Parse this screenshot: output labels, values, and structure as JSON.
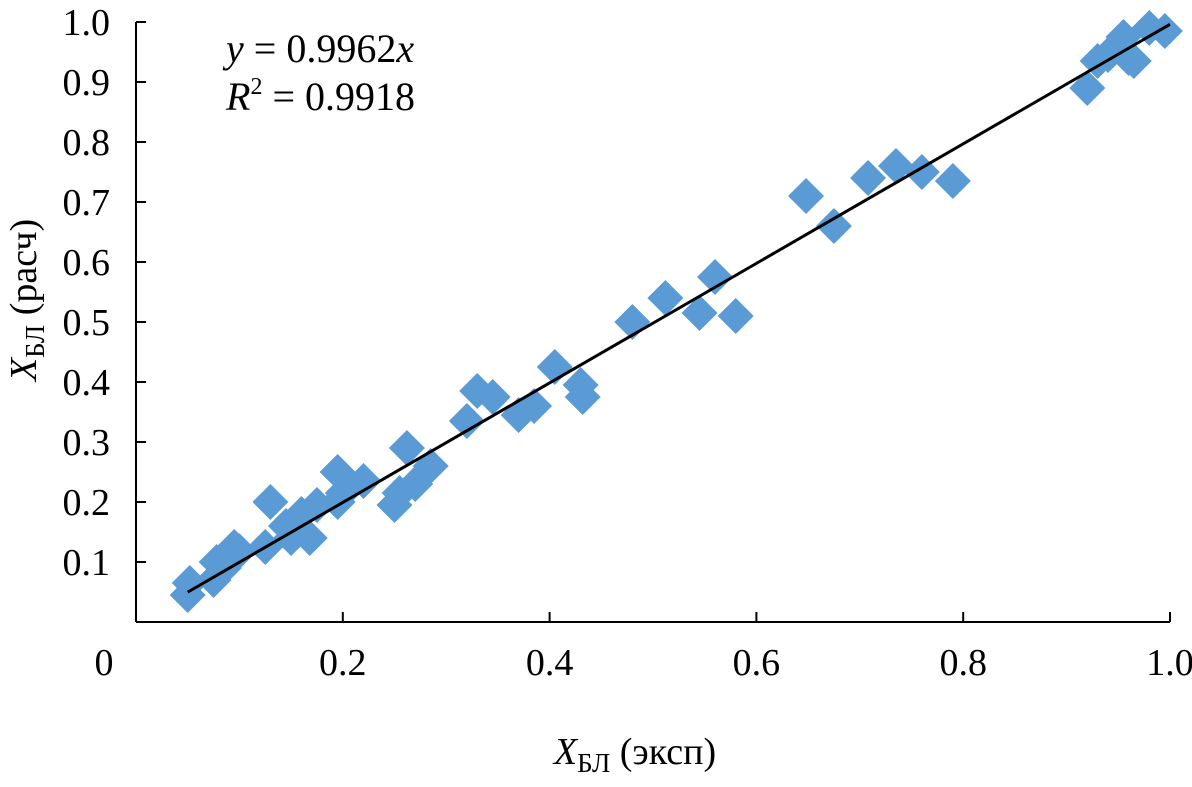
{
  "chart_data": {
    "type": "scatter",
    "title": "",
    "xlabel": {
      "var": "X",
      "sub": "БЛ",
      "rest": " (эксп)"
    },
    "ylabel": {
      "var": "X",
      "sub": "БЛ",
      "rest": " (расч)"
    },
    "xlim": [
      0,
      1.0
    ],
    "ylim": [
      0,
      1.0
    ],
    "x_ticks": [
      {
        "value": 0,
        "label": "0"
      },
      {
        "value": 0.2,
        "label": "0.2"
      },
      {
        "value": 0.4,
        "label": "0.4"
      },
      {
        "value": 0.6,
        "label": "0.6"
      },
      {
        "value": 0.8,
        "label": "0.8"
      },
      {
        "value": 1.0,
        "label": "1.0"
      }
    ],
    "y_ticks": [
      {
        "value": 0.1,
        "label": "0.1"
      },
      {
        "value": 0.2,
        "label": "0.2"
      },
      {
        "value": 0.3,
        "label": "0.3"
      },
      {
        "value": 0.4,
        "label": "0.4"
      },
      {
        "value": 0.5,
        "label": "0.5"
      },
      {
        "value": 0.6,
        "label": "0.6"
      },
      {
        "value": 0.7,
        "label": "0.7"
      },
      {
        "value": 0.8,
        "label": "0.8"
      },
      {
        "value": 0.9,
        "label": "0.9"
      },
      {
        "value": 1.0,
        "label": "1.0"
      }
    ],
    "grid": false,
    "marker_color": "#5B9BD5",
    "line_color": "#000000",
    "series": [
      {
        "name": "data",
        "points": [
          [
            0.05,
            0.045
          ],
          [
            0.052,
            0.065
          ],
          [
            0.075,
            0.07
          ],
          [
            0.078,
            0.1
          ],
          [
            0.085,
            0.09
          ],
          [
            0.095,
            0.125
          ],
          [
            0.1,
            0.118
          ],
          [
            0.125,
            0.125
          ],
          [
            0.13,
            0.2
          ],
          [
            0.145,
            0.16
          ],
          [
            0.15,
            0.14
          ],
          [
            0.16,
            0.18
          ],
          [
            0.168,
            0.14
          ],
          [
            0.175,
            0.195
          ],
          [
            0.195,
            0.25
          ],
          [
            0.195,
            0.2
          ],
          [
            0.2,
            0.215
          ],
          [
            0.22,
            0.235
          ],
          [
            0.25,
            0.195
          ],
          [
            0.255,
            0.215
          ],
          [
            0.262,
            0.29
          ],
          [
            0.27,
            0.23
          ],
          [
            0.285,
            0.26
          ],
          [
            0.32,
            0.335
          ],
          [
            0.33,
            0.385
          ],
          [
            0.345,
            0.375
          ],
          [
            0.37,
            0.345
          ],
          [
            0.385,
            0.36
          ],
          [
            0.405,
            0.425
          ],
          [
            0.43,
            0.395
          ],
          [
            0.432,
            0.375
          ],
          [
            0.48,
            0.5
          ],
          [
            0.512,
            0.54
          ],
          [
            0.545,
            0.515
          ],
          [
            0.56,
            0.575
          ],
          [
            0.58,
            0.51
          ],
          [
            0.648,
            0.71
          ],
          [
            0.675,
            0.66
          ],
          [
            0.708,
            0.74
          ],
          [
            0.735,
            0.76
          ],
          [
            0.76,
            0.75
          ],
          [
            0.79,
            0.735
          ],
          [
            0.92,
            0.89
          ],
          [
            0.93,
            0.935
          ],
          [
            0.94,
            0.945
          ],
          [
            0.955,
            0.975
          ],
          [
            0.96,
            0.94
          ],
          [
            0.965,
            0.935
          ],
          [
            0.98,
            0.99
          ],
          [
            0.995,
            0.985
          ]
        ]
      }
    ],
    "trendline": {
      "slope": 0.9962,
      "x_range": [
        0.05,
        1.0
      ]
    },
    "annotations": {
      "equation": {
        "lhs": "y",
        "op": " = 0.9962",
        "var": "x"
      },
      "r2": {
        "sym": "R",
        "sup": "2",
        "rest": " = 0.9918"
      }
    }
  }
}
